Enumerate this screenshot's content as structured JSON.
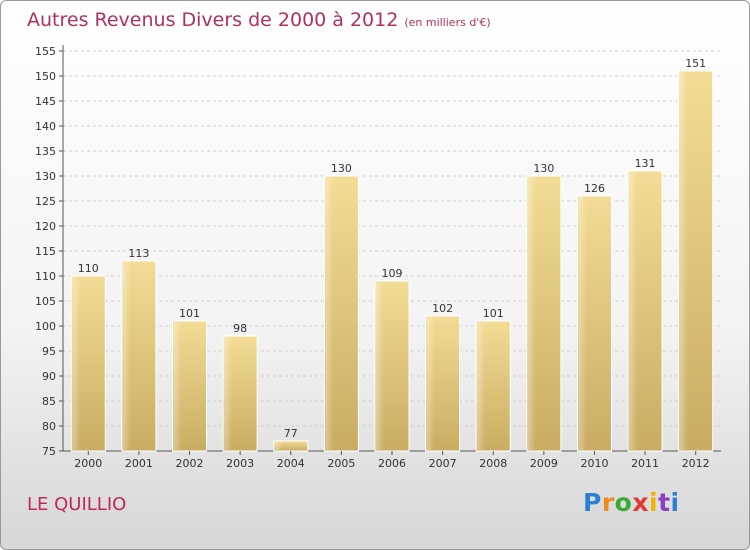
{
  "chart_data": {
    "type": "bar",
    "title": "Autres Revenus Divers de 2000 à 2012",
    "subtitle": "(en milliers d'€)",
    "categories": [
      "2000",
      "2001",
      "2002",
      "2003",
      "2004",
      "2005",
      "2006",
      "2007",
      "2008",
      "2009",
      "2010",
      "2011",
      "2012"
    ],
    "values": [
      110,
      113,
      101,
      98,
      77,
      130,
      109,
      102,
      101,
      130,
      126,
      131,
      151
    ],
    "ylim": [
      75,
      155
    ],
    "yticks": [
      75,
      80,
      85,
      90,
      95,
      100,
      105,
      110,
      115,
      120,
      125,
      130,
      135,
      140,
      145,
      150,
      155
    ],
    "grid": true,
    "bar_color": "#e9cf85"
  },
  "footer": {
    "place": "LE QUILLIO",
    "logo": "Proxiti"
  },
  "colors": {
    "title": "#b03060",
    "place": "#c0285a",
    "logo": [
      "#2f7fd1",
      "#f08a1a",
      "#3aaa35",
      "#e23a2e",
      "#f2b300",
      "#8a3fc4",
      "#2f7fd1"
    ]
  }
}
